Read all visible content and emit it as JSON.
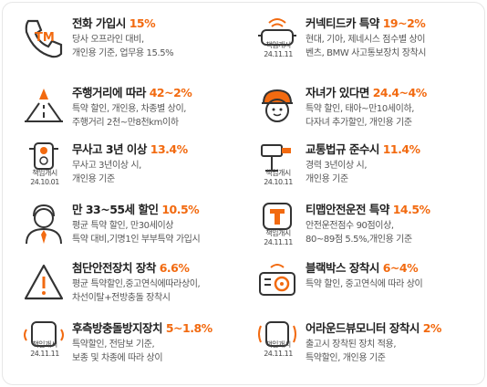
{
  "colors": {
    "accent": "#f26a10",
    "icon_stroke": "#333333"
  },
  "stamp_label": "책임개시",
  "items": [
    {
      "title": "전화 가입시 ",
      "rate": "15%",
      "line1": "당사 오프라인 대비,",
      "line2": "개인용 기준, 업무용 15.5%",
      "icon": "phone-tm-icon",
      "stamp_date": ""
    },
    {
      "title": "커넥티드카 특약 ",
      "rate": "19~2%",
      "line1": "현대, 기아, 제네시스 점수별 상이",
      "line2": "벤츠, BMW 사고통보장치 장착시",
      "icon": "connected-car-icon",
      "stamp_date": "24.11.11"
    },
    {
      "title": "주행거리에 따라 ",
      "rate": "42~2%",
      "line1": "특약 할인, 개인용, 차종별 상이,",
      "line2": "주행거리 2천~만8천km이하",
      "icon": "road-icon",
      "stamp_date": ""
    },
    {
      "title": "자녀가 있다면 ",
      "rate": "24.4~4%",
      "line1": "특약 할인, 태아~만10세이하,",
      "line2": "다자녀 추가할인, 개인용 기준",
      "icon": "child-icon",
      "stamp_date": ""
    },
    {
      "title": "무사고 3년 이상 ",
      "rate": "13.4%",
      "line1": "무사고 3년이상 시,",
      "line2": "개인용 기준",
      "icon": "traffic-light-icon",
      "stamp_date": "24.10.01"
    },
    {
      "title": "교통법규 준수시 ",
      "rate": "11.4%",
      "line1": "경력 3년이상 시,",
      "line2": "개인용 기준",
      "icon": "speed-camera-icon",
      "stamp_date": "24.10.11"
    },
    {
      "title": "만 33~55세 할인 ",
      "rate": "10.5%",
      "line1": "평균 특약 할인, 만30세이상",
      "line2": "특약 대비,기명1인 부부특약 가입시",
      "icon": "person-icon",
      "stamp_date": ""
    },
    {
      "title": "티맵안전운전 특약 ",
      "rate": "14.5%",
      "line1": "안전운전점수 90점이상,",
      "line2": "80~89점 5.5%,개인용 기준",
      "icon": "tmap-icon",
      "stamp_date": "24.11.11"
    },
    {
      "title": "첨단안전장치 장착 ",
      "rate": "6.6%",
      "line1": "평균 특약할인,중고연식에따라상이,",
      "line2": "차선이탈+전방충돌 장착시",
      "icon": "warning-icon",
      "stamp_date": ""
    },
    {
      "title": "블랙박스 장착시 ",
      "rate": "6~4%",
      "line1": "특약 할인, 중고연식에 따라 상이",
      "line2": "",
      "icon": "blackbox-icon",
      "stamp_date": ""
    },
    {
      "title": "후측방충돌방지장치 ",
      "rate": "5~1.8%",
      "line1": "특약할인, 전담보 기준,",
      "line2": "보종 및 차종에 따라 상이",
      "icon": "car-sensor-icon",
      "stamp_date": "24.11.11"
    },
    {
      "title": "어라운드뷰모니터 장착시 ",
      "rate": "2%",
      "line1": "출고시 장착된 장치 적용,",
      "line2": "특약할인, 개인용 기준",
      "icon": "around-view-icon",
      "stamp_date": "24.11.11"
    }
  ]
}
